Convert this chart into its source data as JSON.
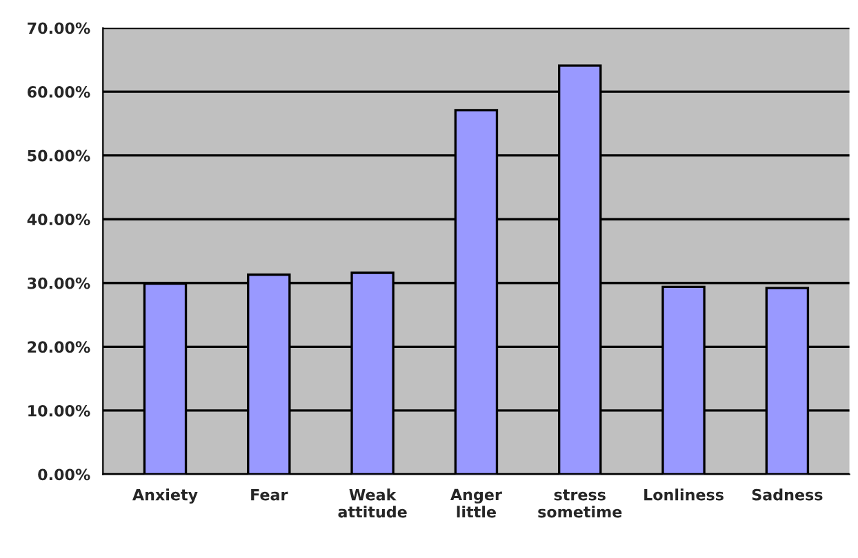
{
  "chart_data": {
    "type": "bar",
    "categories": [
      "Anxiety",
      "Fear",
      "Weak\nattitude",
      "Anger\nlittle",
      "stress\nsometime",
      "Lonliness",
      "Sadness"
    ],
    "values": [
      29.9,
      31.3,
      31.6,
      57.1,
      64.1,
      29.4,
      29.2
    ],
    "color": "#9999ff",
    "ylim": [
      0,
      70
    ],
    "yticks": [
      {
        "value": 0,
        "label": "0.00%"
      },
      {
        "value": 10,
        "label": "10.00%"
      },
      {
        "value": 20,
        "label": "20.00%"
      },
      {
        "value": 30,
        "label": "30.00%"
      },
      {
        "value": 40,
        "label": "40.00%"
      },
      {
        "value": 50,
        "label": "50.00%"
      },
      {
        "value": 60,
        "label": "60.00%"
      },
      {
        "value": 70,
        "label": "70.00%"
      }
    ],
    "grid": "y"
  }
}
